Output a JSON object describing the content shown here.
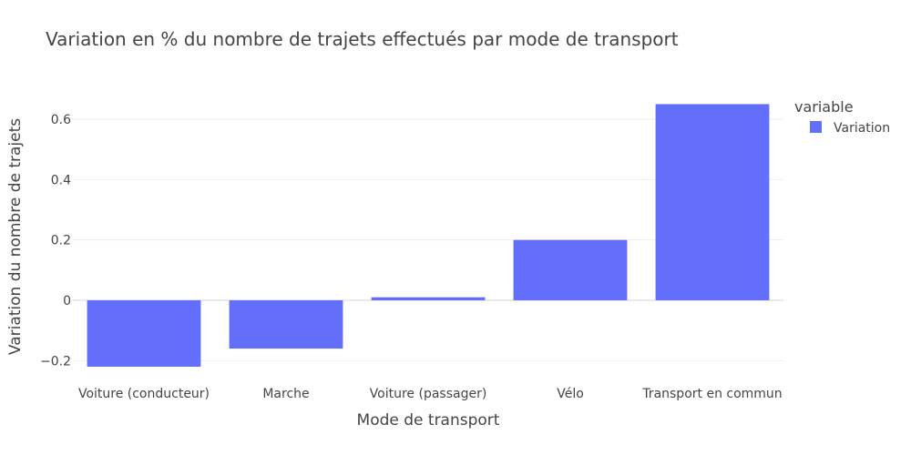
{
  "chart_data": {
    "type": "bar",
    "title": "Variation en % du nombre de trajets effectués par mode de transport",
    "xlabel": "Mode de transport",
    "ylabel": "Variation du nombre de trajets",
    "categories": [
      "Voiture (conducteur)",
      "Marche",
      "Voiture (passager)",
      "Vélo",
      "Transport en commun"
    ],
    "series": [
      {
        "name": "Variation",
        "values": [
          -0.22,
          -0.16,
          0.01,
          0.2,
          0.65
        ],
        "color": "#636efa"
      }
    ],
    "ylim": [
      -0.22,
      0.65
    ],
    "yticks": [
      -0.2,
      0,
      0.2,
      0.4,
      0.6
    ],
    "ytick_labels": [
      "−0.2",
      "0",
      "0.2",
      "0.4",
      "0.6"
    ],
    "grid": true,
    "legend": {
      "title": "variable",
      "placement": "top-right"
    }
  }
}
